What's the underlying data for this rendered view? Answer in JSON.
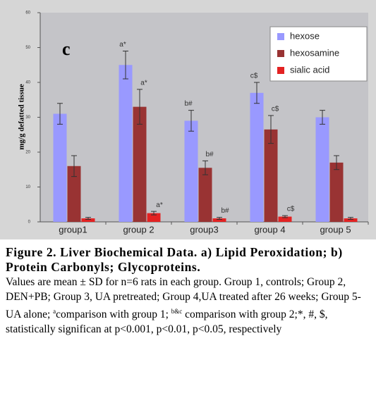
{
  "chart_data": {
    "type": "bar",
    "panel_label": "c",
    "y_label": "mg/g defatted tissue",
    "categories": [
      "group1",
      "group 2",
      "group3",
      "group 4",
      "group 5"
    ],
    "series": [
      {
        "name": "hexose",
        "color": "#9999ff",
        "values": [
          31,
          45,
          29,
          37,
          30
        ],
        "errors": [
          3,
          4,
          3,
          3,
          2
        ],
        "significance": [
          null,
          "a*",
          "b#",
          "c$",
          null
        ]
      },
      {
        "name": "hexosamine",
        "color": "#993333",
        "values": [
          16,
          33,
          15.5,
          26.5,
          17
        ],
        "errors": [
          3,
          5,
          2,
          4,
          2
        ],
        "significance": [
          null,
          "a*",
          "b#",
          "c$",
          null
        ]
      },
      {
        "name": "sialic acid",
        "color": "#e32222",
        "values": [
          1,
          2.5,
          1,
          1.5,
          1
        ],
        "errors": [
          0.3,
          0.5,
          0.3,
          0.3,
          0.3
        ],
        "significance": [
          null,
          "a*",
          "b#",
          "c$",
          null
        ]
      }
    ],
    "ylim": [
      0,
      60
    ],
    "yticks": [
      0,
      10,
      20,
      30,
      40,
      50,
      60
    ],
    "legend": "top-right"
  },
  "caption": {
    "heading": "Figure 2. Liver Biochemical Data. a) Lipid Peroxidation; b) Protein Carbonyls;  Glycoproteins.",
    "body": [
      {
        "text": " Values are mean ±  SD for n=6 rats in each group. Group 1, controls; Group 2, DEN+PB; Group 3, UA pretreated; Group 4,UA treated after 26 weeks; Group 5- UA alone; ",
        "sup": false
      },
      {
        "text": "a",
        "sup": true
      },
      {
        "text": "comparison with group 1; ",
        "sup": false
      },
      {
        "text": "b&c",
        "sup": true
      },
      {
        "text": " comparison with group 2;*, #, $, statistically significan at p<0.001, p<0.01, p<0.05, respectively",
        "sup": false
      }
    ]
  }
}
